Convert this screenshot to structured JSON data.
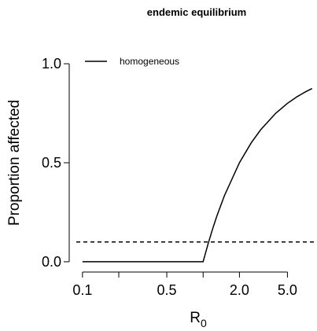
{
  "chart_data": {
    "type": "line",
    "title": "endemic equilibrium",
    "ylabel": "Proportion affected",
    "xlabel": [
      "R",
      "0"
    ],
    "x": [
      0.1,
      1,
      1.1,
      1.2,
      1.3,
      1.5,
      2,
      2.5,
      3,
      4,
      5,
      6,
      7,
      8
    ],
    "series": [
      {
        "name": "homogeneous",
        "color": "#000000",
        "values": [
          0,
          0,
          0.0909,
          0.1667,
          0.2308,
          0.3333,
          0.5,
          0.6,
          0.6667,
          0.75,
          0.8,
          0.8333,
          0.8571,
          0.875
        ]
      }
    ],
    "hline": 0.1,
    "xlog": true,
    "xlim": [
      0.093,
      8.4
    ],
    "ylim": [
      -0.04,
      1.04
    ],
    "xticks": [
      0.1,
      {
        "value": 0.2,
        "label": null
      },
      0.5,
      {
        "value": 1,
        "label": null
      },
      {
        "value": 2,
        "label": "2.0"
      },
      {
        "value": 5,
        "label": "5.0"
      }
    ],
    "yticks": [
      {
        "value": 0,
        "label": "0.0"
      },
      0.5,
      {
        "value": 1,
        "label": "1.0"
      }
    ],
    "legend": "top-left"
  }
}
